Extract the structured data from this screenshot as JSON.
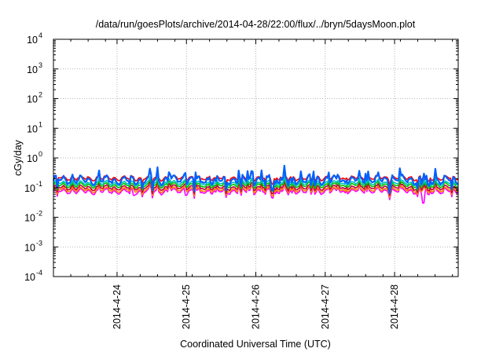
{
  "chart_data": {
    "type": "line",
    "title": "/data/run/goesPlots/archive/2014-04-28/22:00/flux/../bryn/5daysMoon.plot",
    "xlabel": "Coordinated Universal Time (UTC)",
    "ylabel": "cGy/day",
    "yscale": "log",
    "ylim": [
      0.0001,
      10000
    ],
    "xlim": [
      "2014-04-23T02:00",
      "2014-04-28T22:00"
    ],
    "grid": true,
    "legend": "none",
    "yticks": [
      {
        "base": "10",
        "exp": "-4"
      },
      {
        "base": "10",
        "exp": "-3"
      },
      {
        "base": "10",
        "exp": "-2"
      },
      {
        "base": "10",
        "exp": "-1"
      },
      {
        "base": "10",
        "exp": "0"
      },
      {
        "base": "10",
        "exp": "1"
      },
      {
        "base": "10",
        "exp": "2"
      },
      {
        "base": "10",
        "exp": "3"
      },
      {
        "base": "10",
        "exp": "4"
      }
    ],
    "xticks": [
      {
        "label": "2014-4-24",
        "time": "2014-04-24T00:00"
      },
      {
        "label": "2014-4-25",
        "time": "2014-04-25T00:00"
      },
      {
        "label": "2014-4-26",
        "time": "2014-04-26T00:00"
      },
      {
        "label": "2014-4-27",
        "time": "2014-04-27T00:00"
      },
      {
        "label": "2014-4-28",
        "time": "2014-04-28T00:00"
      }
    ],
    "series": [
      {
        "color": "#ff00ff",
        "approx_level": 0.075,
        "dips": [
          {
            "time": "2014-04-28T10:00",
            "value": 0.03
          },
          {
            "time": "2014-04-24T06:00",
            "value": 0.055
          },
          {
            "time": "2014-04-25T00:00",
            "value": 0.055
          }
        ]
      },
      {
        "color": "#ff8000",
        "approx_level": 0.085
      },
      {
        "color": "#c00040",
        "approx_level": 0.1
      },
      {
        "color": "#00c000",
        "approx_level": 0.12
      },
      {
        "color": "#00c0c0",
        "approx_level": 0.14
      },
      {
        "color": "#ff0000",
        "approx_level": 0.21
      },
      {
        "color": "#0060ff",
        "approx_level": 0.18
      }
    ]
  }
}
